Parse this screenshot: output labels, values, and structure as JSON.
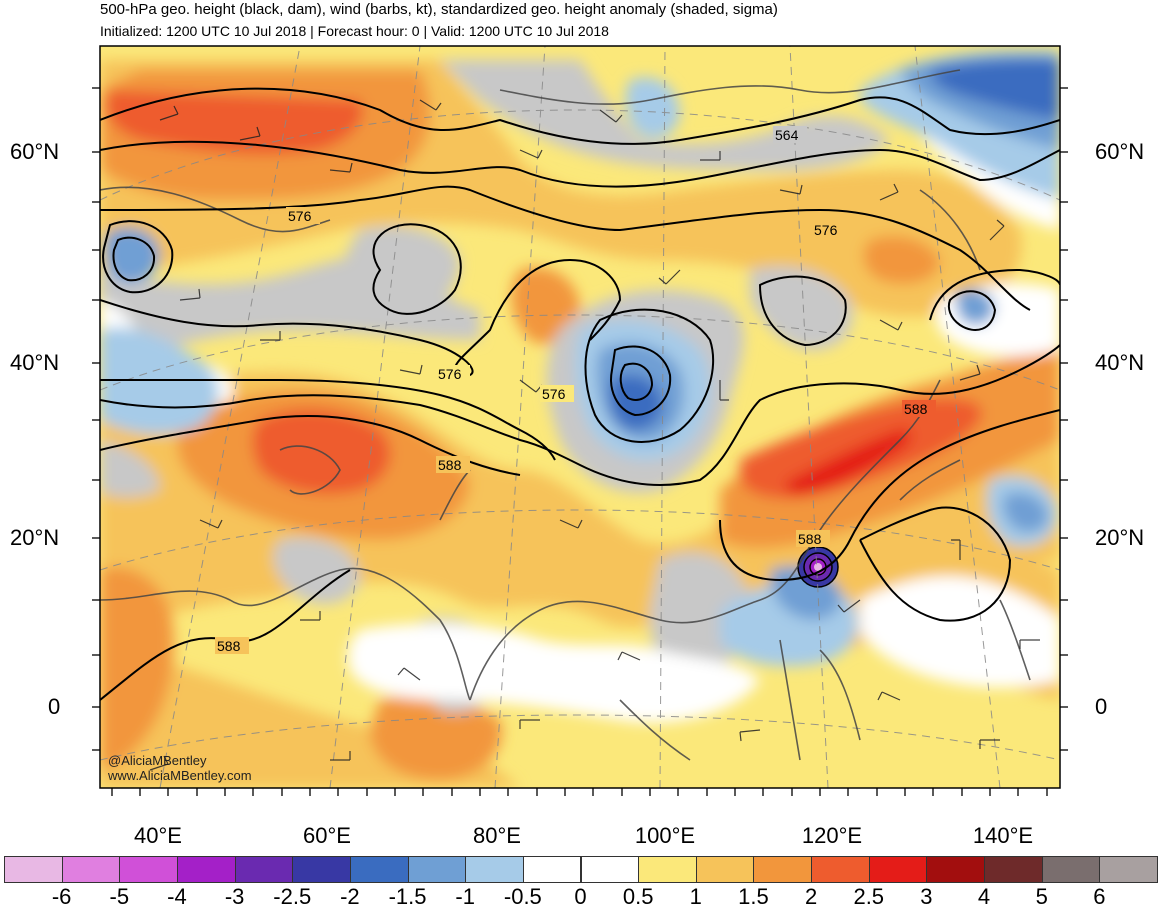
{
  "header": {
    "title": "500-hPa geo. height (black, dam), wind (barbs, kt), standardized geo. height anomaly (shaded, sigma)",
    "subtitle": "Initialized: 1200 UTC 10 Jul 2018 | Forecast hour: 0 | Valid: 1200 UTC 10 Jul 2018"
  },
  "credits": {
    "twitter": "@AliciaMBentley",
    "website": "www.AliciaMBentley.com"
  },
  "lat_labels": [
    "60°N",
    "40°N",
    "20°N",
    "0"
  ],
  "lon_labels": [
    "40°E",
    "60°E",
    "80°E",
    "100°E",
    "120°E",
    "140°E"
  ],
  "contour_labels": [
    "564",
    "576",
    "576",
    "576",
    "576",
    "588",
    "588",
    "588",
    "588"
  ],
  "colorbar": {
    "tick_labels": [
      "-6",
      "-5",
      "-4",
      "-3",
      "-2.5",
      "-2",
      "-1.5",
      "-1",
      "-0.5",
      "0",
      "0.5",
      "1",
      "1.5",
      "2",
      "2.5",
      "3",
      "4",
      "5",
      "6"
    ],
    "colors": [
      "#e8b8e4",
      "#e07fe0",
      "#d050d8",
      "#a420c8",
      "#6a2ab0",
      "#3838a4",
      "#3a6cc0",
      "#6f9fd4",
      "#a6cbe8",
      "#ffffff",
      "#ffffff",
      "#fbe87a",
      "#f6c35a",
      "#f2963c",
      "#ee5c2e",
      "#e41c18",
      "#a20e0e",
      "#6e2a2a",
      "#7a6e6e",
      "#a8a0a0"
    ]
  },
  "map_colors": {
    "ocean_land_base": "#fbe87a",
    "anomaly_1": "#f6c35a",
    "anomaly_15": "#f2963c",
    "anomaly_2": "#ee5c2e",
    "anomaly_25": "#e41c18",
    "gray_neutral": "#c8c8c8",
    "neg_05": "#a6cbe8",
    "neg_1": "#6f9fd4",
    "neg_15": "#3a6cc0",
    "neg_2": "#3838a4",
    "typhoon_core": "#a420c8"
  }
}
